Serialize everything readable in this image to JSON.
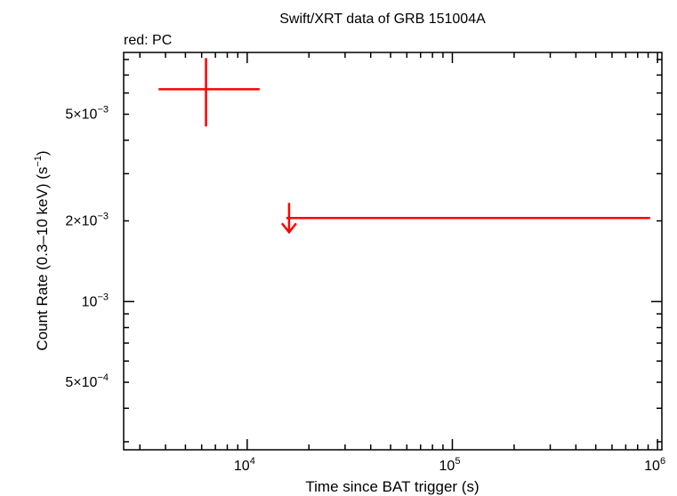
{
  "chart_data": {
    "type": "scatter",
    "title": "Swift/XRT data of GRB 151004A",
    "subtitle": "red: PC",
    "xlabel": "Time since BAT trigger (s)",
    "ylabel_main": "Count Rate (0.3–10 keV) (s",
    "ylabel_sup": "−1",
    "ylabel_end": ")",
    "x_scale": "log",
    "y_scale": "log",
    "xlim": [
      2500,
      1050000
    ],
    "ylim": [
      0.00028,
      0.0085
    ],
    "x_ticks": [
      {
        "value": 10000,
        "base": "10",
        "exp": "4"
      },
      {
        "value": 100000,
        "base": "10",
        "exp": "5"
      },
      {
        "value": 1000000,
        "base": "10",
        "exp": "6"
      }
    ],
    "y_ticks": [
      {
        "value": 0.005,
        "mant": "5×10",
        "exp": "−3"
      },
      {
        "value": 0.002,
        "mant": "2×10",
        "exp": "−3"
      },
      {
        "value": 0.001,
        "mant": "10",
        "exp": "−3"
      },
      {
        "value": 0.0005,
        "mant": "5×10",
        "exp": "−4"
      }
    ],
    "series": [
      {
        "color": "#ff0000",
        "points": [
          {
            "x": 6300,
            "x_lo": 3700,
            "x_hi": 11500,
            "y": 0.0062,
            "y_lo": 0.0045,
            "y_hi": 0.0081,
            "upper_limit": false
          },
          {
            "x": 16000,
            "x_lo": 15500,
            "x_hi": 920000,
            "y": 0.00205,
            "upper_limit": true
          }
        ]
      }
    ]
  }
}
